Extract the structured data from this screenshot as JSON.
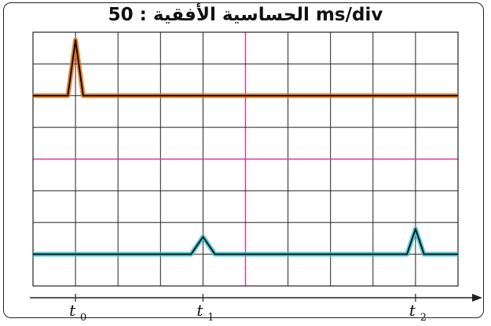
{
  "title": "الحساسية الأفقية : 50 ms/div",
  "chart_data": {
    "type": "line",
    "title": "الحساسية الأفقية : 50 ms/div",
    "x_unit": "div",
    "xlim": [
      0,
      10
    ],
    "ylim": [
      0,
      8
    ],
    "grid": true,
    "series": [
      {
        "color": "#e36c0a",
        "baseline": 6,
        "pulses": [
          {
            "x": 1.0,
            "height": 1.75,
            "halfwidth": 0.18
          }
        ]
      },
      {
        "color": "#2ec7d6",
        "baseline": 1,
        "pulses": [
          {
            "x": 4.0,
            "height": 0.55,
            "halfwidth": 0.28
          },
          {
            "x": 9.0,
            "height": 0.8,
            "halfwidth": 0.2
          }
        ]
      }
    ],
    "axis_labels": [
      {
        "text": "t",
        "sub": "0",
        "x": 1
      },
      {
        "text": "t",
        "sub": "1",
        "x": 4
      },
      {
        "text": "t",
        "sub": "2",
        "x": 9
      }
    ],
    "colors": {
      "grid": "#222222",
      "grid_accent": "#d4388f",
      "trace": "#000000"
    }
  }
}
